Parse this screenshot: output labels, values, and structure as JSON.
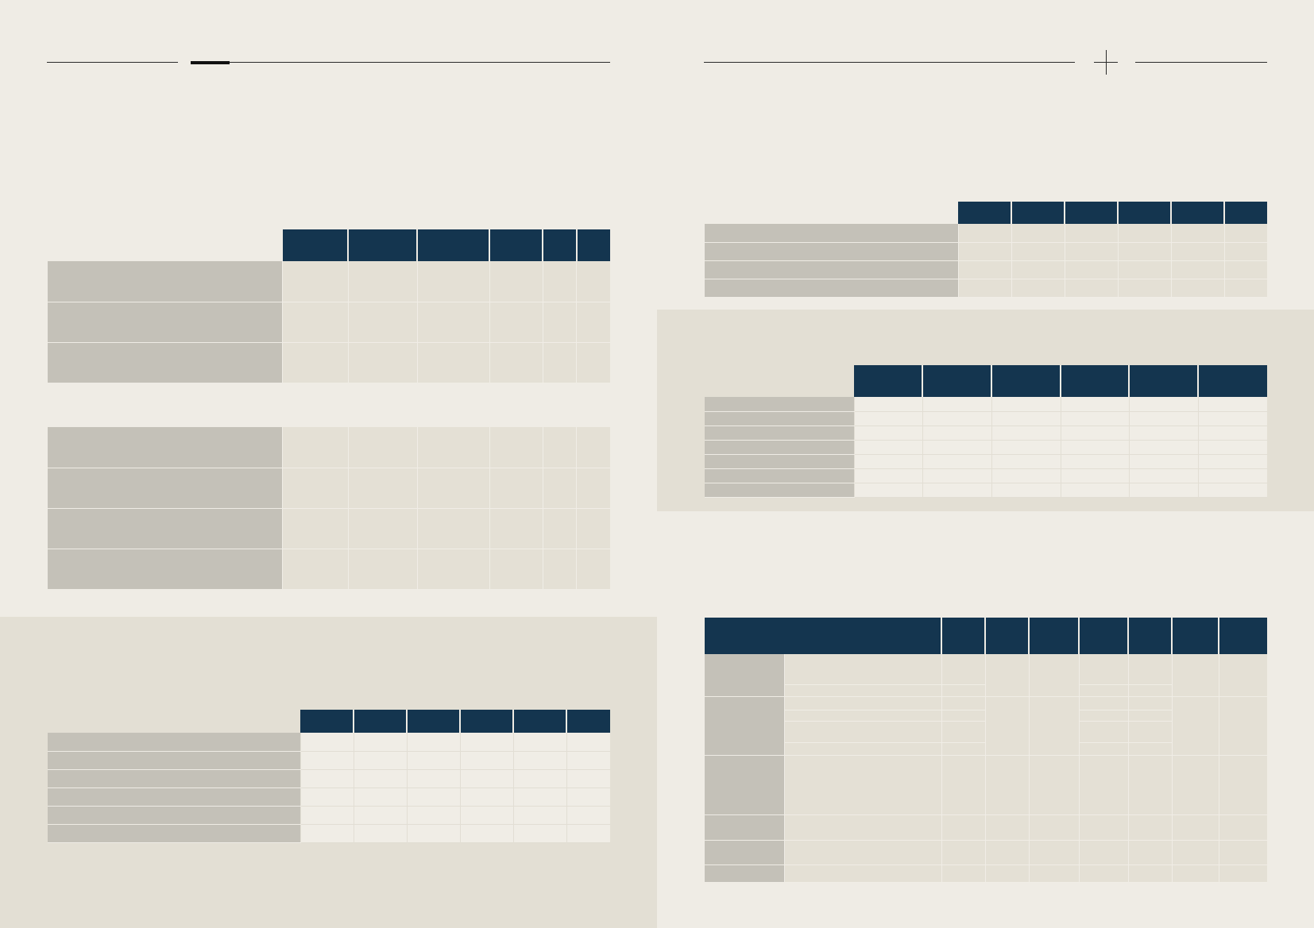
{
  "page": {
    "left": {
      "title": "",
      "subtitle": ""
    },
    "right": {
      "title": "",
      "subtitle": ""
    }
  },
  "colors": {
    "background": "#efece5",
    "panel": "#e3dfd4",
    "header": "#14354f",
    "label_cell": "#c4c1b8",
    "value_cell": "#e4e0d5",
    "value_cell_light": "#f0ede6"
  },
  "icons": {
    "crosshair": "plus-crosshair-icon"
  },
  "tables": {
    "left_top": {
      "headers": [
        "",
        "",
        "",
        "",
        "",
        ""
      ],
      "rows": [
        [
          "",
          "",
          "",
          "",
          "",
          "",
          ""
        ],
        [
          "",
          "",
          "",
          "",
          "",
          "",
          ""
        ],
        [
          "",
          "",
          "",
          "",
          "",
          "",
          ""
        ]
      ]
    },
    "left_middle": {
      "rows": [
        [
          "",
          "",
          "",
          "",
          "",
          "",
          ""
        ],
        [
          "",
          "",
          "",
          "",
          "",
          "",
          ""
        ],
        [
          "",
          "",
          "",
          "",
          "",
          "",
          ""
        ],
        [
          "",
          "",
          "",
          "",
          "",
          "",
          ""
        ]
      ]
    },
    "left_bottom": {
      "headers": [
        "",
        "",
        "",
        "",
        "",
        ""
      ],
      "rows": [
        [
          "",
          "",
          "",
          "",
          "",
          "",
          ""
        ],
        [
          "",
          "",
          "",
          "",
          "",
          "",
          ""
        ],
        [
          "",
          "",
          "",
          "",
          "",
          "",
          ""
        ],
        [
          "",
          "",
          "",
          "",
          "",
          "",
          ""
        ],
        [
          "",
          "",
          "",
          "",
          "",
          "",
          ""
        ],
        [
          "",
          "",
          "",
          "",
          "",
          "",
          ""
        ]
      ]
    },
    "right_top": {
      "headers": [
        "",
        "",
        "",
        "",
        "",
        ""
      ],
      "rows": [
        [
          "",
          "",
          "",
          "",
          "",
          "",
          ""
        ],
        [
          "",
          "",
          "",
          "",
          "",
          "",
          ""
        ],
        [
          "",
          "",
          "",
          "",
          "",
          "",
          ""
        ],
        [
          "",
          "",
          "",
          "",
          "",
          "",
          ""
        ]
      ]
    },
    "right_middle": {
      "headers": [
        "",
        "",
        "",
        "",
        "",
        ""
      ],
      "rows": [
        [
          "",
          "",
          "",
          "",
          "",
          "",
          ""
        ],
        [
          "",
          "",
          "",
          "",
          "",
          "",
          ""
        ],
        [
          "",
          "",
          "",
          "",
          "",
          "",
          ""
        ],
        [
          "",
          "",
          "",
          "",
          "",
          "",
          ""
        ],
        [
          "",
          "",
          "",
          "",
          "",
          "",
          ""
        ],
        [
          "",
          "",
          "",
          "",
          "",
          "",
          ""
        ],
        [
          "",
          "",
          "",
          "",
          "",
          "",
          ""
        ]
      ]
    },
    "right_bottom": {
      "headers": [
        "",
        "",
        "",
        "",
        "",
        "",
        "",
        ""
      ],
      "rows": []
    }
  }
}
